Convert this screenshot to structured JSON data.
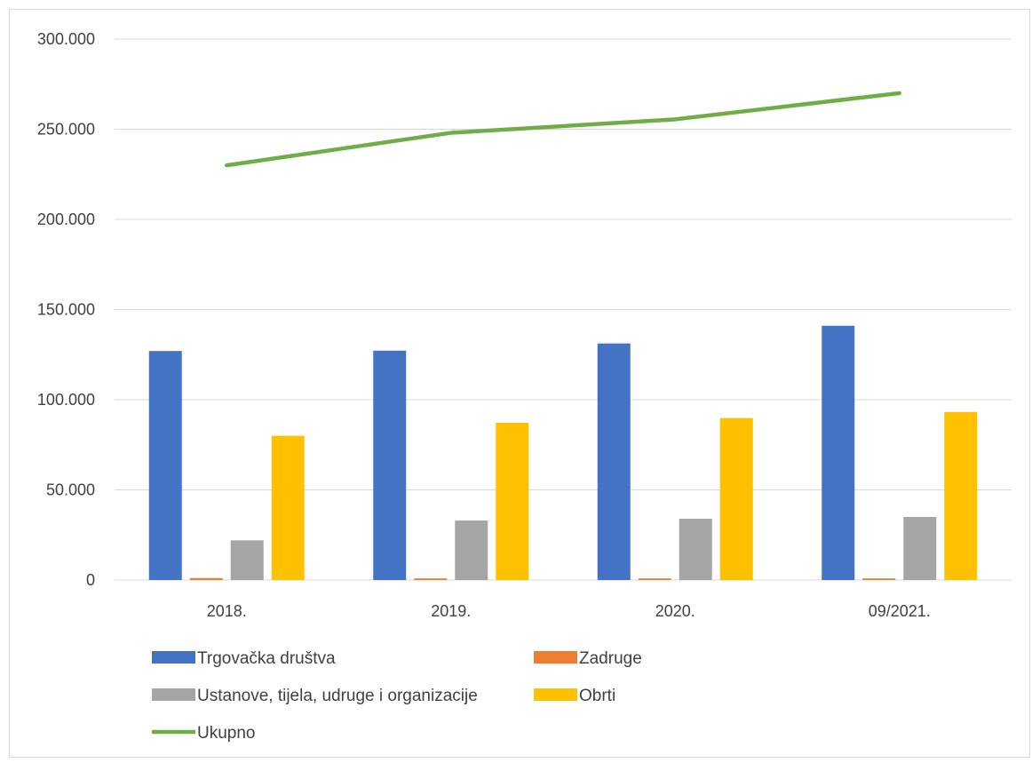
{
  "chart_data": {
    "type": "bar",
    "categories": [
      "2018.",
      "2019.",
      "2020.",
      "09/2021."
    ],
    "series": [
      {
        "name": "Trgovačka društva",
        "kind": "bar",
        "color": "#4472C4",
        "values": [
          127000,
          127200,
          131200,
          141000
        ]
      },
      {
        "name": "Zadruge",
        "kind": "bar",
        "color": "#ED7D31",
        "values": [
          1100,
          900,
          900,
          900
        ]
      },
      {
        "name": "Ustanove, tijela, udruge i organizacije",
        "kind": "bar",
        "color": "#A5A5A5",
        "values": [
          22000,
          33000,
          34000,
          35000
        ]
      },
      {
        "name": "Obrti",
        "kind": "bar",
        "color": "#FFC000",
        "values": [
          80000,
          87200,
          89800,
          93200
        ]
      },
      {
        "name": "Ukupno",
        "kind": "line",
        "color": "#70AD47",
        "values": [
          230000,
          248000,
          255500,
          270000
        ]
      }
    ],
    "y_ticks": [
      "0",
      "50.000",
      "100.000",
      "150.000",
      "200.000",
      "250.000",
      "300.000"
    ],
    "ylim": [
      0,
      300000
    ],
    "grid": true,
    "legend_position": "bottom"
  }
}
